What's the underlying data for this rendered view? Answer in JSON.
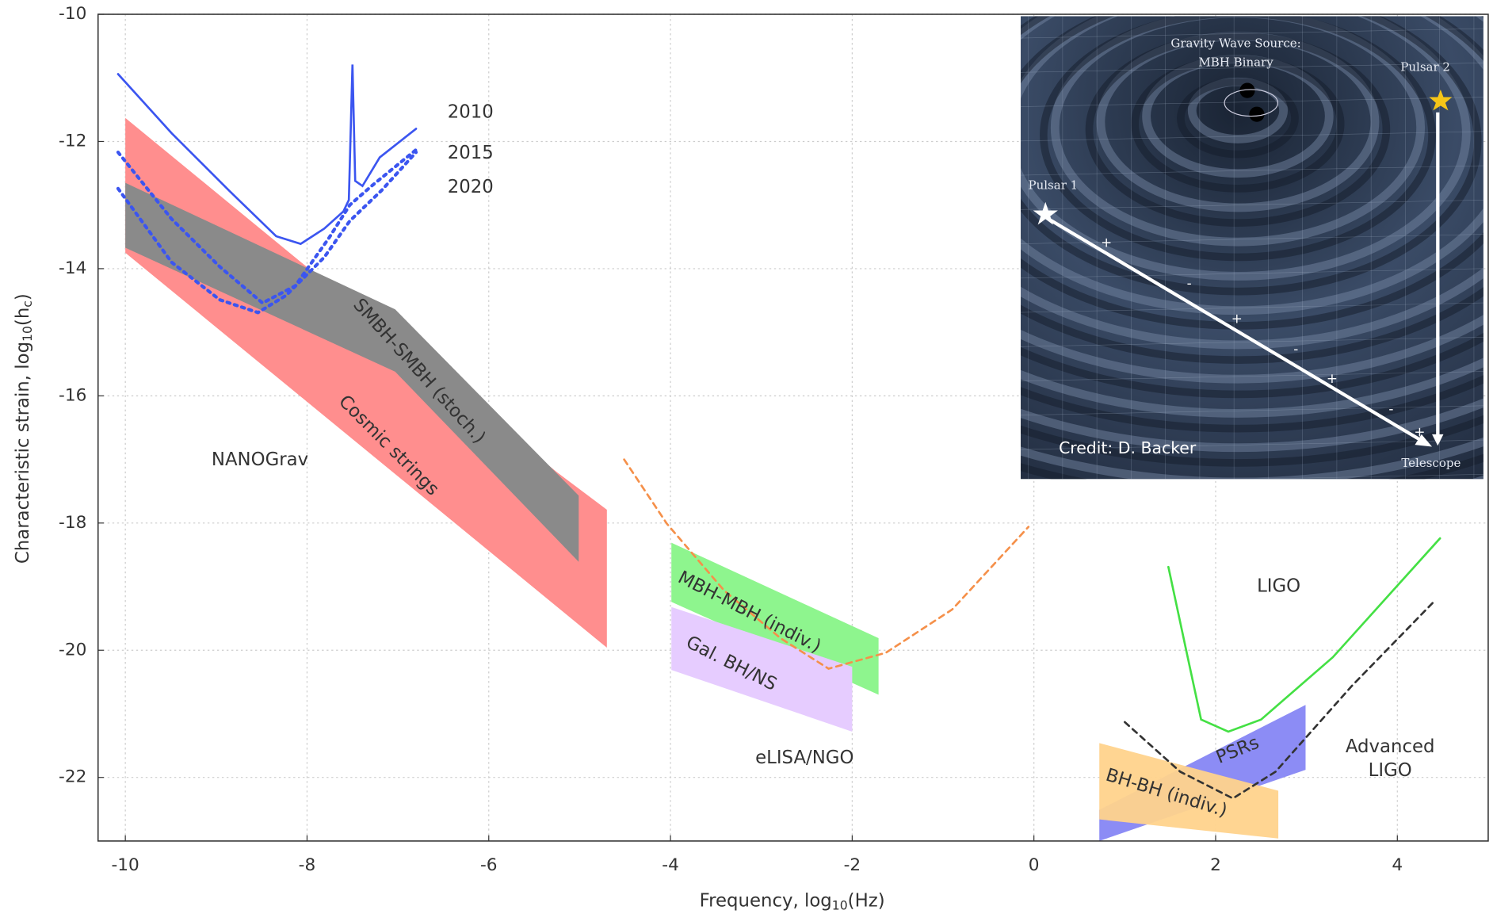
{
  "chart_data": {
    "type": "line",
    "xlabel": [
      "Frequency, log",
      "10",
      "(Hz)"
    ],
    "ylabel": [
      "Characteristic strain, log",
      "10",
      "(h",
      "c",
      ")"
    ],
    "xlim": [
      -10.3,
      5
    ],
    "ylim": [
      -23,
      -10
    ],
    "xticks": [
      -10,
      -8,
      -6,
      -4,
      -2,
      0,
      2,
      4
    ],
    "yticks": [
      -10,
      -12,
      -14,
      -16,
      -18,
      -20,
      -22
    ],
    "grid": true,
    "series": [
      {
        "name": "2010",
        "color": "#3b55f0",
        "dash": "solid",
        "x": [
          -10.08,
          -9.49,
          -8.86,
          -8.34,
          -8.07,
          -7.81,
          -7.6,
          -7.54,
          -7.5,
          -7.47,
          -7.39,
          -7.2,
          -6.8
        ],
        "y": [
          -10.94,
          -11.87,
          -12.77,
          -13.49,
          -13.61,
          -13.37,
          -13.1,
          -12.92,
          -10.79,
          -12.62,
          -12.7,
          -12.25,
          -11.8
        ]
      },
      {
        "name": "2015",
        "color": "#3b55f0",
        "dash": "dotted",
        "x": [
          -10.08,
          -9.49,
          -8.96,
          -8.49,
          -8.13,
          -7.76,
          -7.53,
          -7.29,
          -6.8
        ],
        "y": [
          -12.17,
          -13.22,
          -13.97,
          -14.54,
          -14.27,
          -13.52,
          -13.0,
          -12.7,
          -12.13
        ]
      },
      {
        "name": "2020",
        "color": "#3b55f0",
        "dash": "dotted",
        "x": [
          -10.08,
          -9.49,
          -8.96,
          -8.54,
          -8.23,
          -7.81,
          -7.53,
          -7.18,
          -6.8
        ],
        "y": [
          -12.74,
          -13.9,
          -14.49,
          -14.69,
          -14.42,
          -13.82,
          -13.25,
          -12.77,
          -12.17
        ]
      },
      {
        "name": "eLISA/NGO",
        "color": "#f5904a",
        "dash": "dashed",
        "x": [
          -4.51,
          -4.04,
          -3.41,
          -2.79,
          -2.26,
          -1.63,
          -0.9,
          -0.06
        ],
        "y": [
          -17.0,
          -18.01,
          -19.06,
          -19.81,
          -20.29,
          -20.04,
          -19.36,
          -18.06
        ]
      },
      {
        "name": "LIGO",
        "color": "#44e044",
        "dash": "solid",
        "x": [
          1.48,
          1.67,
          1.84,
          2.14,
          2.5,
          3.29,
          4.47
        ],
        "y": [
          -18.69,
          -19.96,
          -21.09,
          -21.28,
          -21.09,
          -20.11,
          -18.24
        ]
      },
      {
        "name": "Advanced LIGO",
        "color": "#333333",
        "dash": "dashed",
        "x": [
          1.0,
          1.61,
          2.19,
          2.66,
          3.5,
          4.42
        ],
        "y": [
          -21.13,
          -21.91,
          -22.33,
          -21.91,
          -20.56,
          -19.21
        ]
      }
    ],
    "regions": [
      {
        "name": "Cosmic strings",
        "color": "#ff8e8e",
        "x": [
          -10,
          -5.25,
          -4.7,
          -4.7,
          -10
        ],
        "y": [
          -11.63,
          -17.2,
          -17.79,
          -19.96,
          -13.75
        ]
      },
      {
        "name": "SMBH-SMBH (stoch.)",
        "color": "#8a8a8a",
        "x": [
          -10,
          -7.03,
          -5.01,
          -5.01,
          -7.03,
          -10
        ],
        "y": [
          -12.65,
          -14.64,
          -17.57,
          -18.61,
          -15.62,
          -13.67
        ]
      },
      {
        "name": "MBH-MBH (indiv.)",
        "color": "#8ef58e",
        "x": [
          -3.99,
          -1.71,
          -1.71,
          -3.99
        ],
        "y": [
          -18.31,
          -19.81,
          -20.7,
          -19.24
        ]
      },
      {
        "name": "Gal. BH/NS",
        "color": "#e6ccff",
        "x": [
          -3.99,
          -2.0,
          -2.0,
          -3.99
        ],
        "y": [
          -19.32,
          -20.26,
          -21.28,
          -20.31
        ]
      },
      {
        "name": "PSRs",
        "color": "#8c8cf5",
        "x": [
          0.72,
          2.99,
          2.99,
          0.72
        ],
        "y": [
          -22.51,
          -20.86,
          -21.88,
          -23.0
        ]
      },
      {
        "name": "BH-BH (indiv.)",
        "color": "#ffd38c",
        "x": [
          0.72,
          2.69,
          2.69,
          0.72
        ],
        "y": [
          -21.46,
          -22.21,
          -22.96,
          -22.66
        ]
      }
    ],
    "annotations": [
      "NANOGrav"
    ]
  },
  "inset": {
    "source": "Gravity Wave Source:",
    "source_kind": "MBH Binary",
    "pulsar1": "Pulsar 1",
    "pulsar2": "Pulsar 2",
    "telescope": "Telescope",
    "credit": "Credit: D. Backer",
    "signs": [
      "+",
      "-",
      "+",
      "-",
      "+",
      "-",
      "+"
    ]
  }
}
